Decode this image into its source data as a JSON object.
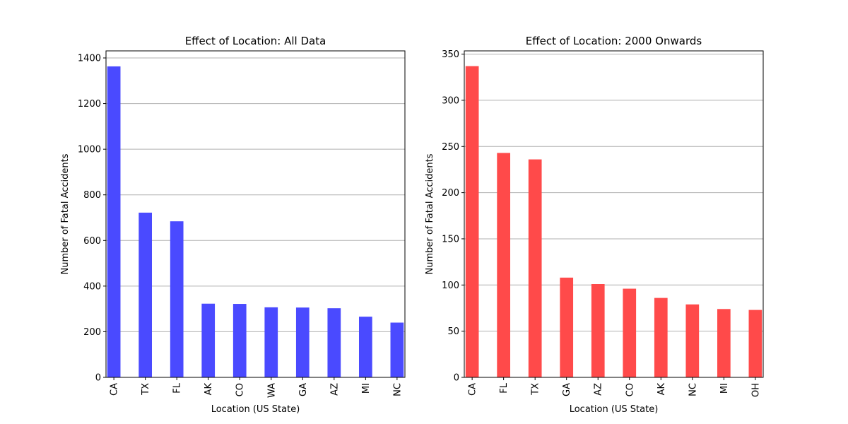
{
  "chart_data": [
    {
      "type": "bar",
      "title": "Effect of Location: All Data",
      "xlabel": "Location (US State)",
      "ylabel": "Number of Fatal Accidents",
      "categories": [
        "CA",
        "TX",
        "FL",
        "AK",
        "CO",
        "WA",
        "GA",
        "AZ",
        "MI",
        "NC"
      ],
      "values": [
        1363,
        722,
        684,
        323,
        322,
        307,
        306,
        303,
        266,
        240
      ],
      "ylim": [
        0,
        1431
      ],
      "yticks": [
        0,
        200,
        400,
        600,
        800,
        1000,
        1200,
        1400
      ],
      "color": "#4a4aff",
      "grid": "y"
    },
    {
      "type": "bar",
      "title": "Effect of Location: 2000 Onwards",
      "xlabel": "Location (US State)",
      "ylabel": "Number of Fatal Accidents",
      "categories": [
        "CA",
        "FL",
        "TX",
        "GA",
        "AZ",
        "CO",
        "AK",
        "NC",
        "MI",
        "OH"
      ],
      "values": [
        337,
        243,
        236,
        108,
        101,
        96,
        86,
        79,
        74,
        73
      ],
      "ylim": [
        0,
        353.5
      ],
      "yticks": [
        0,
        50,
        100,
        150,
        200,
        250,
        300,
        350
      ],
      "color": "#ff4a4a",
      "grid": "y"
    }
  ]
}
